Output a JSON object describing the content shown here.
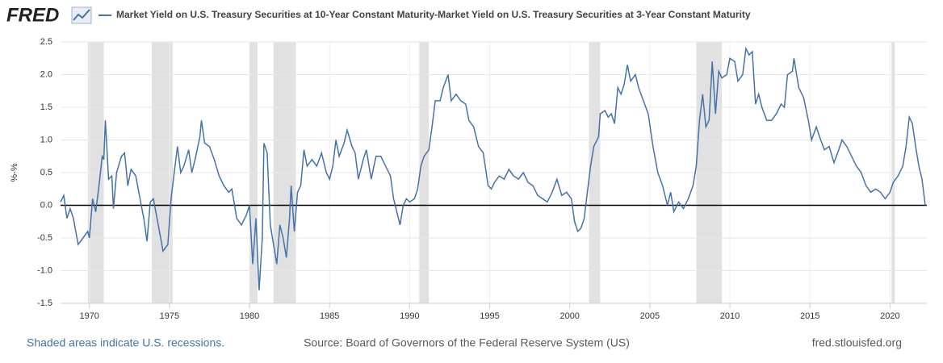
{
  "chart_data": {
    "type": "line",
    "logo": "FRED",
    "title": "Market Yield on U.S. Treasury Securities at 10-Year Constant Maturity-Market Yield on U.S. Treasury Securities at 3-Year Constant Maturity",
    "y_label": "%-%",
    "footer_left": "Shaded areas indicate U.S. recessions.",
    "footer_center": "Source: Board of Governors of the Federal Reserve System (US)",
    "footer_right": "fred.stlouisfed.org",
    "xlim": [
      1968.2,
      2022.3
    ],
    "xticks": [
      1970,
      1975,
      1980,
      1985,
      1990,
      1995,
      2000,
      2005,
      2010,
      2015,
      2020
    ],
    "ylim": [
      -1.5,
      2.5
    ],
    "yticks": [
      2.5,
      {
        "value": 2,
        "label": "2.0"
      },
      1.5,
      {
        "value": 1,
        "label": "1.0"
      },
      0.5,
      {
        "value": 0,
        "label": "0.0"
      },
      -0.5,
      {
        "value": -1,
        "label": "-1.0"
      },
      -1.5
    ],
    "grid": true,
    "recession_color": "#e1e1e1",
    "recessions": [
      [
        1969.9,
        1970.9
      ],
      [
        1973.9,
        1975.2
      ],
      [
        1980.0,
        1980.5
      ],
      [
        1981.5,
        1982.9
      ],
      [
        1990.6,
        1991.2
      ],
      [
        2001.2,
        2001.9
      ],
      [
        2007.9,
        2009.5
      ],
      [
        2020.1,
        2020.3
      ]
    ],
    "x": [
      1968.2,
      1968.4,
      1968.6,
      1968.8,
      1969.0,
      1969.3,
      1969.6,
      1969.9,
      1970.0,
      1970.2,
      1970.4,
      1970.6,
      1970.8,
      1970.9,
      1971.0,
      1971.2,
      1971.4,
      1971.5,
      1971.7,
      1972.0,
      1972.2,
      1972.4,
      1972.6,
      1972.9,
      1973.2,
      1973.4,
      1973.6,
      1973.8,
      1974.0,
      1974.3,
      1974.6,
      1974.9,
      1975.1,
      1975.3,
      1975.5,
      1975.7,
      1975.9,
      1976.2,
      1976.4,
      1976.6,
      1976.9,
      1977.0,
      1977.2,
      1977.5,
      1977.8,
      1978.1,
      1978.4,
      1978.7,
      1978.9,
      1979.2,
      1979.5,
      1979.8,
      1980.0,
      1980.2,
      1980.4,
      1980.6,
      1980.8,
      1980.9,
      1981.1,
      1981.3,
      1981.5,
      1981.7,
      1981.9,
      1982.1,
      1982.3,
      1982.5,
      1982.6,
      1982.8,
      1983.0,
      1983.2,
      1983.4,
      1983.6,
      1983.9,
      1984.2,
      1984.5,
      1984.8,
      1985.0,
      1985.2,
      1985.4,
      1985.6,
      1985.9,
      1986.1,
      1986.4,
      1986.6,
      1986.8,
      1987.1,
      1987.3,
      1987.6,
      1987.9,
      1988.2,
      1988.5,
      1988.8,
      1989.0,
      1989.2,
      1989.4,
      1989.6,
      1989.8,
      1990.0,
      1990.3,
      1990.5,
      1990.7,
      1990.9,
      1991.2,
      1991.4,
      1991.6,
      1991.9,
      1992.1,
      1992.4,
      1992.6,
      1992.9,
      1993.2,
      1993.5,
      1993.7,
      1994.0,
      1994.3,
      1994.6,
      1994.9,
      1995.1,
      1995.3,
      1995.6,
      1995.9,
      1996.2,
      1996.5,
      1996.8,
      1997.1,
      1997.4,
      1997.7,
      1998.0,
      1998.3,
      1998.6,
      1998.9,
      1999.2,
      1999.5,
      1999.8,
      2000.1,
      2000.3,
      2000.5,
      2000.7,
      2000.9,
      2001.1,
      2001.3,
      2001.5,
      2001.8,
      2001.9,
      2002.2,
      2002.4,
      2002.6,
      2002.8,
      2003.0,
      2003.2,
      2003.4,
      2003.6,
      2003.8,
      2004.1,
      2004.3,
      2004.6,
      2004.9,
      2005.2,
      2005.5,
      2005.8,
      2006.1,
      2006.3,
      2006.5,
      2006.8,
      2007.1,
      2007.4,
      2007.7,
      2007.9,
      2008.1,
      2008.3,
      2008.5,
      2008.7,
      2008.9,
      2009.1,
      2009.3,
      2009.5,
      2009.8,
      2010.0,
      2010.3,
      2010.5,
      2010.8,
      2011.0,
      2011.2,
      2011.4,
      2011.6,
      2011.8,
      2012.0,
      2012.3,
      2012.6,
      2012.9,
      2013.2,
      2013.4,
      2013.6,
      2013.9,
      2014.0,
      2014.3,
      2014.6,
      2014.9,
      2015.1,
      2015.4,
      2015.6,
      2015.9,
      2016.2,
      2016.5,
      2016.8,
      2017.0,
      2017.3,
      2017.6,
      2017.9,
      2018.2,
      2018.5,
      2018.8,
      2019.1,
      2019.4,
      2019.7,
      2020.0,
      2020.2,
      2020.5,
      2020.8,
      2021.0,
      2021.2,
      2021.4,
      2021.6,
      2021.8,
      2022.0,
      2022.2
    ],
    "series": [
      {
        "name": "Market Yield on U.S. Treasury Securities at 10-Year Constant Maturity-Market Yield on U.S. Treasury Securities at 3-Year Constant Maturity",
        "color": "#4572a7",
        "values": [
          0.05,
          0.15,
          -0.2,
          -0.05,
          -0.2,
          -0.6,
          -0.5,
          -0.4,
          -0.5,
          0.1,
          -0.1,
          0.3,
          0.75,
          0.7,
          1.3,
          0.4,
          0.45,
          -0.05,
          0.5,
          0.75,
          0.8,
          0.3,
          0.55,
          0.45,
          0.05,
          -0.2,
          -0.55,
          0.05,
          0.1,
          -0.3,
          -0.7,
          -0.6,
          0.1,
          0.5,
          0.9,
          0.5,
          0.6,
          0.85,
          0.5,
          0.7,
          1.05,
          1.3,
          0.95,
          0.9,
          0.7,
          0.45,
          0.3,
          0.2,
          0.25,
          -0.2,
          -0.3,
          -0.15,
          0.0,
          -0.9,
          -0.2,
          -1.3,
          -0.5,
          0.95,
          0.8,
          -0.3,
          -0.6,
          -0.9,
          -0.3,
          -0.5,
          -0.8,
          -0.2,
          0.3,
          -0.4,
          0.2,
          0.3,
          0.85,
          0.6,
          0.7,
          0.6,
          0.8,
          0.5,
          0.4,
          0.6,
          1.0,
          0.75,
          0.95,
          1.15,
          0.9,
          0.8,
          0.4,
          0.7,
          0.85,
          0.4,
          0.75,
          0.75,
          0.6,
          0.45,
          0.1,
          -0.1,
          -0.3,
          0.0,
          0.1,
          0.05,
          0.1,
          0.25,
          0.6,
          0.75,
          0.85,
          1.2,
          1.6,
          1.6,
          1.8,
          2.0,
          1.6,
          1.7,
          1.6,
          1.55,
          1.3,
          1.2,
          0.9,
          0.8,
          0.3,
          0.25,
          0.35,
          0.45,
          0.4,
          0.55,
          0.45,
          0.4,
          0.5,
          0.35,
          0.3,
          0.15,
          0.1,
          0.05,
          0.2,
          0.4,
          0.15,
          0.2,
          0.1,
          -0.25,
          -0.4,
          -0.35,
          -0.2,
          0.2,
          0.6,
          0.9,
          1.05,
          1.4,
          1.45,
          1.35,
          1.4,
          1.25,
          1.8,
          1.7,
          1.85,
          2.15,
          1.9,
          2.0,
          1.8,
          1.6,
          1.4,
          0.9,
          0.5,
          0.3,
          0.0,
          0.2,
          -0.1,
          0.05,
          -0.05,
          0.1,
          0.3,
          0.6,
          1.3,
          1.7,
          1.2,
          1.3,
          2.2,
          1.4,
          2.05,
          1.95,
          2.0,
          2.25,
          2.2,
          1.9,
          2.0,
          2.4,
          2.3,
          2.35,
          1.55,
          1.7,
          1.5,
          1.3,
          1.3,
          1.4,
          1.55,
          1.5,
          2.0,
          2.05,
          2.25,
          1.8,
          1.65,
          1.3,
          1.0,
          1.2,
          1.05,
          0.85,
          0.9,
          0.65,
          0.85,
          1.0,
          0.9,
          0.75,
          0.6,
          0.5,
          0.3,
          0.2,
          0.25,
          0.2,
          0.1,
          0.2,
          0.35,
          0.45,
          0.6,
          0.9,
          1.35,
          1.25,
          0.9,
          0.6,
          0.4,
          0.0
        ]
      }
    ]
  }
}
